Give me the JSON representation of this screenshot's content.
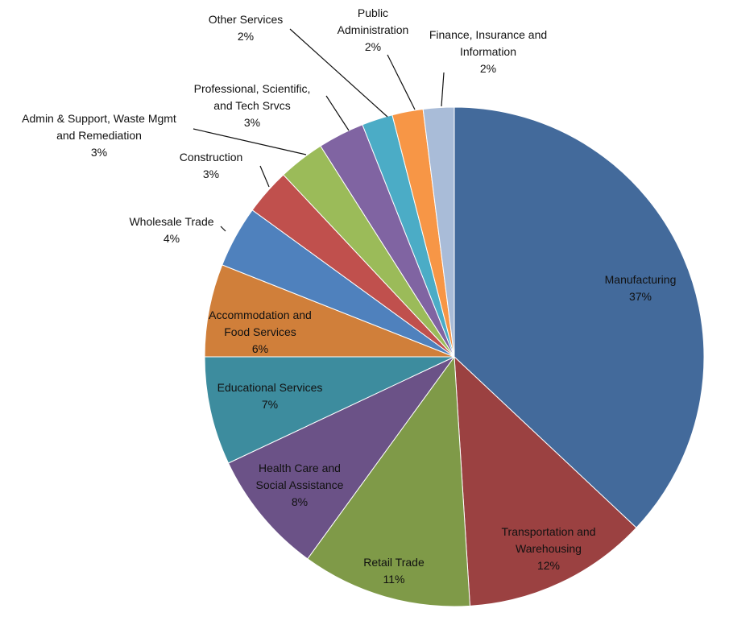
{
  "chart_data": {
    "type": "pie",
    "title": "",
    "slices": [
      {
        "label_lines": [
          "Manufacturing"
        ],
        "value": 37,
        "display": "37%",
        "color": "#436a9b"
      },
      {
        "label_lines": [
          "Transportation and",
          "Warehousing"
        ],
        "value": 12,
        "display": "12%",
        "color": "#9b4141"
      },
      {
        "label_lines": [
          "Retail Trade"
        ],
        "value": 11,
        "display": "11%",
        "color": "#7f9a48"
      },
      {
        "label_lines": [
          "Health Care and",
          "Social Assistance"
        ],
        "value": 8,
        "display": "8%",
        "color": "#6b5287"
      },
      {
        "label_lines": [
          "Educational Services"
        ],
        "value": 7,
        "display": "7%",
        "color": "#3d8c9e"
      },
      {
        "label_lines": [
          "Accommodation and",
          "Food Services"
        ],
        "value": 6,
        "display": "6%",
        "color": "#d07f3a"
      },
      {
        "label_lines": [
          "Wholesale Trade"
        ],
        "value": 4,
        "display": "4%",
        "color": "#4f81bd"
      },
      {
        "label_lines": [
          "Construction"
        ],
        "value": 3,
        "display": "3%",
        "color": "#c0504d"
      },
      {
        "label_lines": [
          "Admin & Support, Waste Mgmt",
          "and Remediation"
        ],
        "value": 3,
        "display": "3%",
        "color": "#9bbb59"
      },
      {
        "label_lines": [
          "Professional, Scientific,",
          "and Tech Srvcs"
        ],
        "value": 3,
        "display": "3%",
        "color": "#8064a2"
      },
      {
        "label_lines": [
          "Other Services"
        ],
        "value": 2,
        "display": "2%",
        "color": "#4bacc6"
      },
      {
        "label_lines": [
          "Public",
          "Administration"
        ],
        "value": 2,
        "display": "2%",
        "color": "#f79646"
      },
      {
        "label_lines": [
          "Finance, Insurance and",
          "Information"
        ],
        "value": 2,
        "display": "2%",
        "color": "#a9bcd8"
      }
    ]
  }
}
